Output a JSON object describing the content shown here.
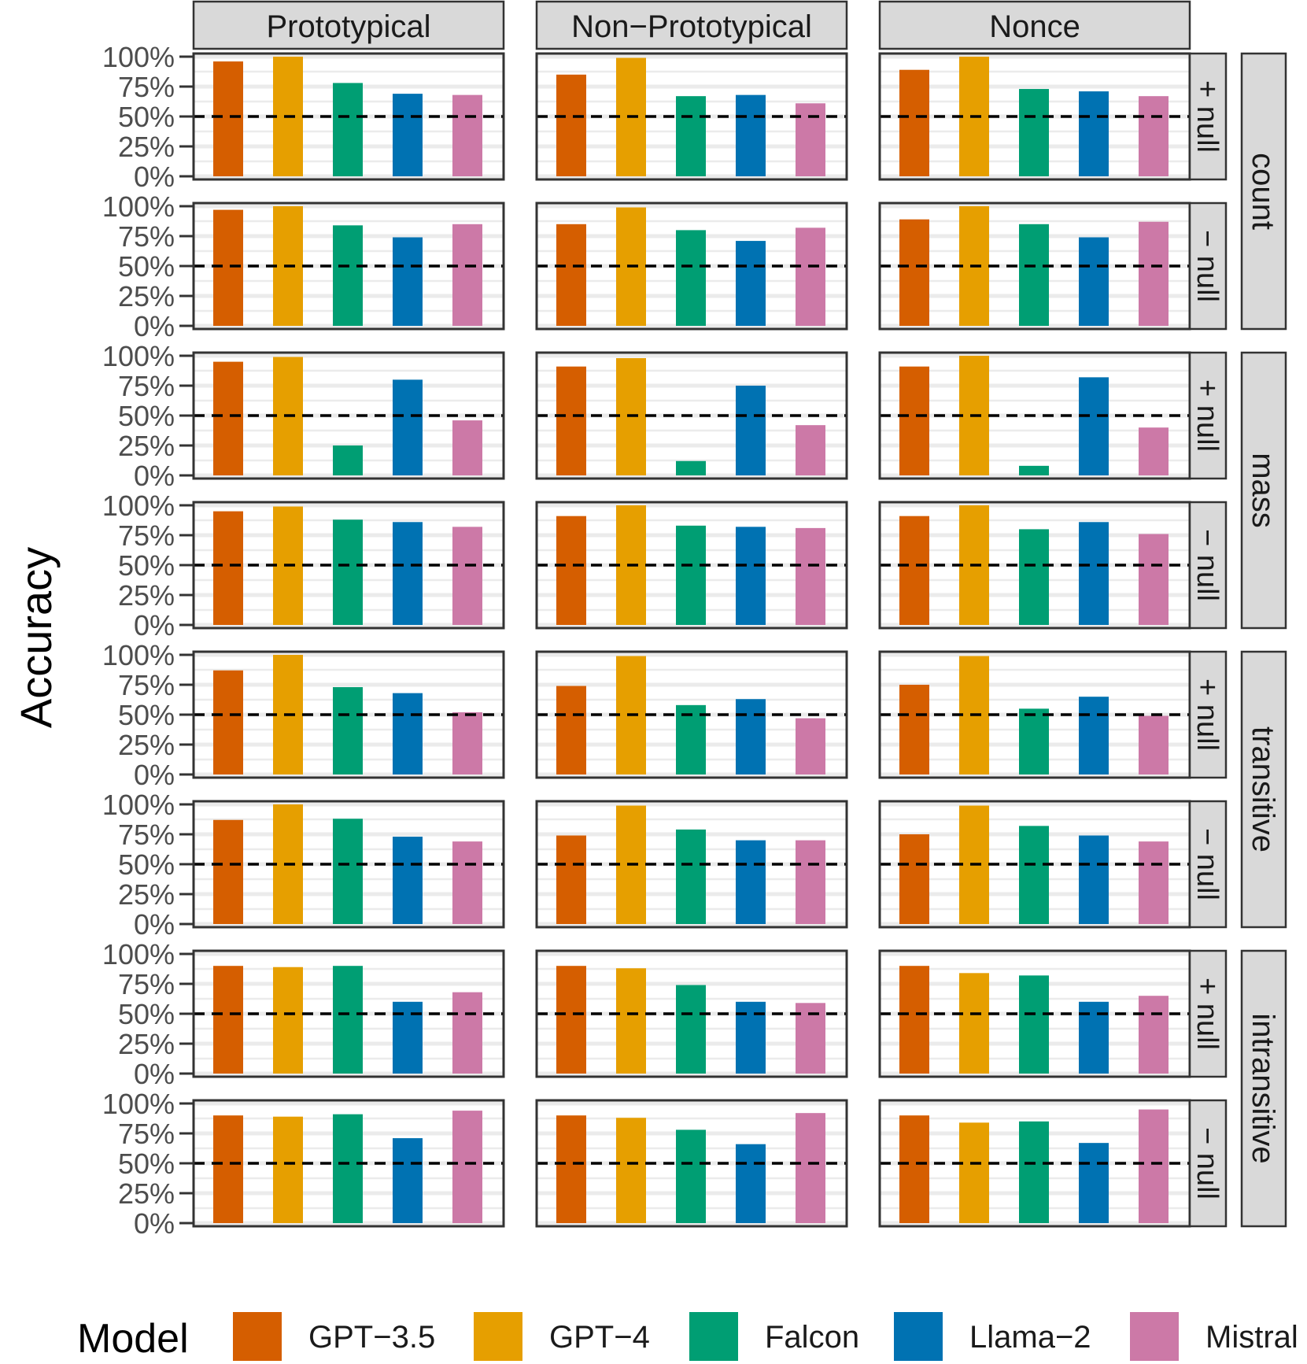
{
  "chart_data": {
    "type": "bar",
    "ylabel": "Accuracy",
    "ylim": [
      0,
      1
    ],
    "y_ticks": [
      "0%",
      "25%",
      "50%",
      "75%",
      "100%"
    ],
    "reference_line": 0.5,
    "column_facets": [
      "Prototypical",
      "Non−Prototypical",
      "Nonce"
    ],
    "row_groups": [
      {
        "label": "count",
        "rows": [
          "+ null",
          "− null"
        ]
      },
      {
        "label": "mass",
        "rows": [
          "+ null",
          "− null"
        ]
      },
      {
        "label": "transitive",
        "rows": [
          "+ null",
          "− null"
        ]
      },
      {
        "label": "intransitive",
        "rows": [
          "+ null",
          "− null"
        ]
      }
    ],
    "categories": [
      "GPT−3.5",
      "GPT−4",
      "Falcon",
      "Llama−2",
      "Mistral"
    ],
    "legend": {
      "title": "Model",
      "position": "bottom",
      "items": [
        {
          "label": "GPT−3.5",
          "color": "#D55E00"
        },
        {
          "label": "GPT−4",
          "color": "#E69F00"
        },
        {
          "label": "Falcon",
          "color": "#009E73"
        },
        {
          "label": "Llama−2",
          "color": "#0072B2"
        },
        {
          "label": "Mistral",
          "color": "#CC79A7"
        }
      ]
    },
    "values": [
      [
        [
          0.96,
          1.0,
          0.78,
          0.69,
          0.68
        ],
        [
          0.85,
          0.99,
          0.67,
          0.68,
          0.61
        ],
        [
          0.89,
          1.0,
          0.73,
          0.71,
          0.67
        ]
      ],
      [
        [
          0.97,
          1.0,
          0.84,
          0.74,
          0.85
        ],
        [
          0.85,
          0.99,
          0.8,
          0.71,
          0.82
        ],
        [
          0.89,
          1.0,
          0.85,
          0.74,
          0.87
        ]
      ],
      [
        [
          0.95,
          0.99,
          0.25,
          0.8,
          0.46
        ],
        [
          0.91,
          0.98,
          0.12,
          0.75,
          0.42
        ],
        [
          0.91,
          1.0,
          0.08,
          0.82,
          0.4
        ]
      ],
      [
        [
          0.95,
          0.99,
          0.88,
          0.86,
          0.82
        ],
        [
          0.91,
          1.0,
          0.83,
          0.82,
          0.81
        ],
        [
          0.91,
          1.0,
          0.8,
          0.86,
          0.76
        ]
      ],
      [
        [
          0.87,
          1.0,
          0.73,
          0.68,
          0.52
        ],
        [
          0.74,
          0.99,
          0.58,
          0.63,
          0.47
        ],
        [
          0.75,
          0.99,
          0.55,
          0.65,
          0.49
        ]
      ],
      [
        [
          0.87,
          1.0,
          0.88,
          0.73,
          0.69
        ],
        [
          0.74,
          0.99,
          0.79,
          0.7,
          0.7
        ],
        [
          0.75,
          0.99,
          0.82,
          0.74,
          0.69
        ]
      ],
      [
        [
          0.9,
          0.89,
          0.9,
          0.6,
          0.68
        ],
        [
          0.9,
          0.88,
          0.74,
          0.6,
          0.59
        ],
        [
          0.9,
          0.84,
          0.82,
          0.6,
          0.65
        ]
      ],
      [
        [
          0.9,
          0.89,
          0.91,
          0.71,
          0.94
        ],
        [
          0.9,
          0.88,
          0.78,
          0.66,
          0.92
        ],
        [
          0.9,
          0.84,
          0.85,
          0.67,
          0.95
        ]
      ]
    ]
  }
}
